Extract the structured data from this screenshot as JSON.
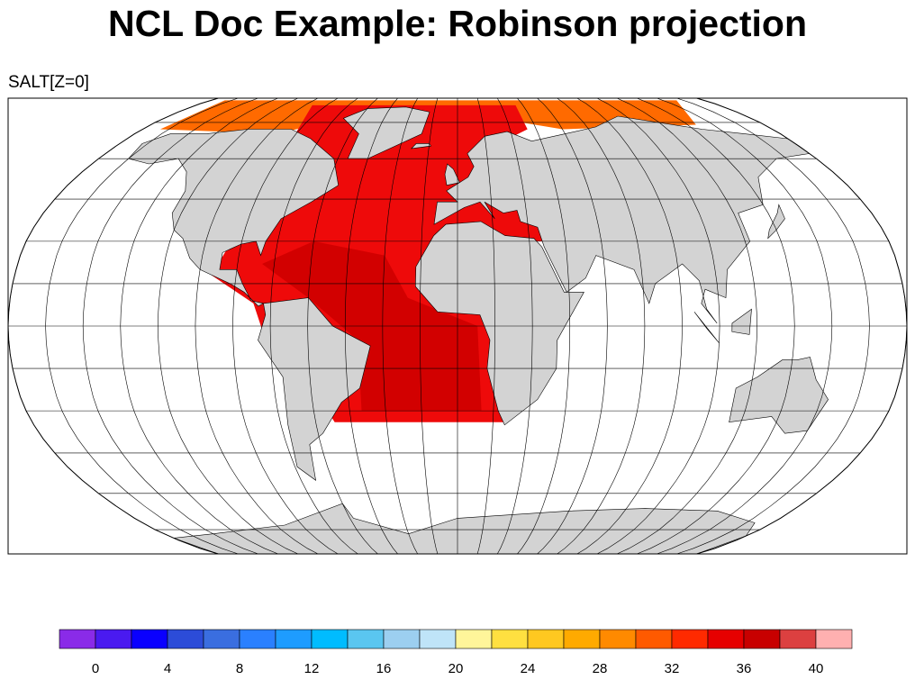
{
  "title": "NCL Doc Example: Robinson projection",
  "subtitle": "SALT[Z=0]",
  "colorbar": {
    "colors": [
      "#8a2be8",
      "#4a1af0",
      "#0a00ff",
      "#2c4cd8",
      "#3a6ee0",
      "#2a80ff",
      "#1e9cff",
      "#00bcff",
      "#5ac6f0",
      "#9ccff0",
      "#bfe4f8",
      "#fff59a",
      "#ffe040",
      "#ffc820",
      "#ffaa00",
      "#ff8a00",
      "#ff5a00",
      "#ff2a00",
      "#e60000",
      "#c80000",
      "#dc4040",
      "#ffb0b0"
    ],
    "levels": [
      0,
      4,
      8,
      12,
      16,
      20,
      24,
      28,
      32,
      36,
      40
    ]
  }
}
